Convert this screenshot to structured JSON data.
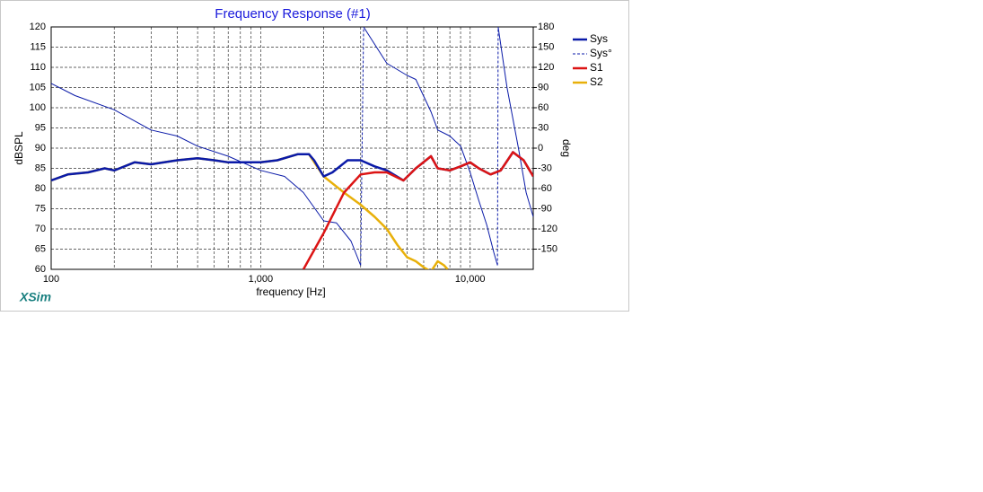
{
  "chart_data": {
    "type": "line",
    "title": "Frequency Response (#1)",
    "xlabel": "frequency [Hz]",
    "ylabel": "dBSPL",
    "y2label": "deg",
    "brand": "XSim",
    "xscale": "log",
    "xlim": [
      100,
      20000
    ],
    "xticks": [
      {
        "value": 100,
        "label": "100"
      },
      {
        "value": 1000,
        "label": "1,000"
      },
      {
        "value": 10000,
        "label": "10,000"
      }
    ],
    "xminor_ticks": [
      200,
      300,
      400,
      500,
      600,
      700,
      800,
      900,
      2000,
      3000,
      4000,
      5000,
      6000,
      7000,
      8000,
      9000,
      20000
    ],
    "ylim": [
      60,
      120
    ],
    "yticks": [
      60,
      65,
      70,
      75,
      80,
      85,
      90,
      95,
      100,
      105,
      110,
      115,
      120
    ],
    "y2lim": [
      -180,
      180
    ],
    "y2ticks": [
      -150,
      -120,
      -90,
      -60,
      -30,
      0,
      30,
      60,
      90,
      120,
      150,
      180
    ],
    "grid": true,
    "legend": "right",
    "series": [
      {
        "name": "Sys",
        "color": "#0a1aa8",
        "width": 2.5,
        "x": [
          100,
          120,
          150,
          180,
          200,
          250,
          300,
          400,
          500,
          600,
          700,
          800,
          1000,
          1200,
          1500,
          1700,
          1800,
          2000,
          2200,
          2600,
          3000,
          3500,
          4000,
          4800,
          5500,
          6500,
          7000,
          8000,
          9000,
          10000,
          11000,
          12500,
          14000,
          16000,
          18000,
          20000
        ],
        "values": [
          82,
          83.5,
          84,
          85,
          84.5,
          86.5,
          86,
          87,
          87.5,
          87,
          86.5,
          86.5,
          86.5,
          87,
          88.5,
          88.5,
          87,
          83,
          84,
          87,
          87,
          85.5,
          84.5,
          82,
          85,
          88,
          85,
          84.5,
          85.5,
          86.5,
          85,
          83.5,
          84.5,
          89,
          87,
          83
        ]
      },
      {
        "name": "Sys°",
        "color": "#0a1aa8",
        "width": 1,
        "axis": "y2",
        "dash": true,
        "x": [
          100,
          130,
          200,
          300,
          400,
          500,
          700,
          1000,
          1300,
          1600,
          2000,
          2300,
          2700,
          3000,
          3100,
          4000,
          5000,
          5500,
          6500,
          7000,
          8000,
          9000,
          10000,
          11000,
          12000,
          13000,
          13500,
          13600,
          15000,
          17000,
          18500,
          20000
        ],
        "values": [
          96,
          78,
          57,
          27,
          18,
          3,
          -12,
          -33,
          -42,
          -66,
          -108,
          -111,
          -138,
          -174,
          180,
          126,
          108,
          102,
          54,
          27,
          18,
          3,
          -36,
          -78,
          -114,
          -156,
          -174,
          180,
          90,
          0,
          -66,
          -102
        ]
      },
      {
        "name": "S1",
        "color": "#dc1414",
        "width": 2.5,
        "x": [
          1600,
          2000,
          2500,
          3000,
          3500,
          4000,
          4800,
          5500,
          6500,
          7000,
          8000,
          9000,
          10000,
          11000,
          12500,
          14000,
          16000,
          18000,
          20000
        ],
        "values": [
          60,
          69,
          79,
          83.5,
          84,
          84,
          82,
          85,
          88,
          85,
          84.5,
          85.5,
          86.5,
          85,
          83.5,
          84.5,
          89,
          87,
          83
        ]
      },
      {
        "name": "S2",
        "color": "#e8b00a",
        "width": 2.5,
        "x": [
          100,
          120,
          150,
          180,
          200,
          250,
          300,
          400,
          500,
          600,
          700,
          800,
          1000,
          1200,
          1500,
          1700,
          2000,
          2500,
          3000,
          3500,
          4000,
          4500,
          5000,
          5500,
          6000,
          6500,
          7000,
          7500,
          7800
        ],
        "values": [
          82,
          83.5,
          84,
          85,
          84.5,
          86.5,
          86,
          87,
          87.5,
          87,
          86.5,
          86.5,
          86.5,
          87,
          88.5,
          88.5,
          83,
          79,
          76,
          73,
          70,
          66,
          63,
          62,
          60.5,
          59.5,
          62,
          61,
          60
        ]
      }
    ]
  }
}
